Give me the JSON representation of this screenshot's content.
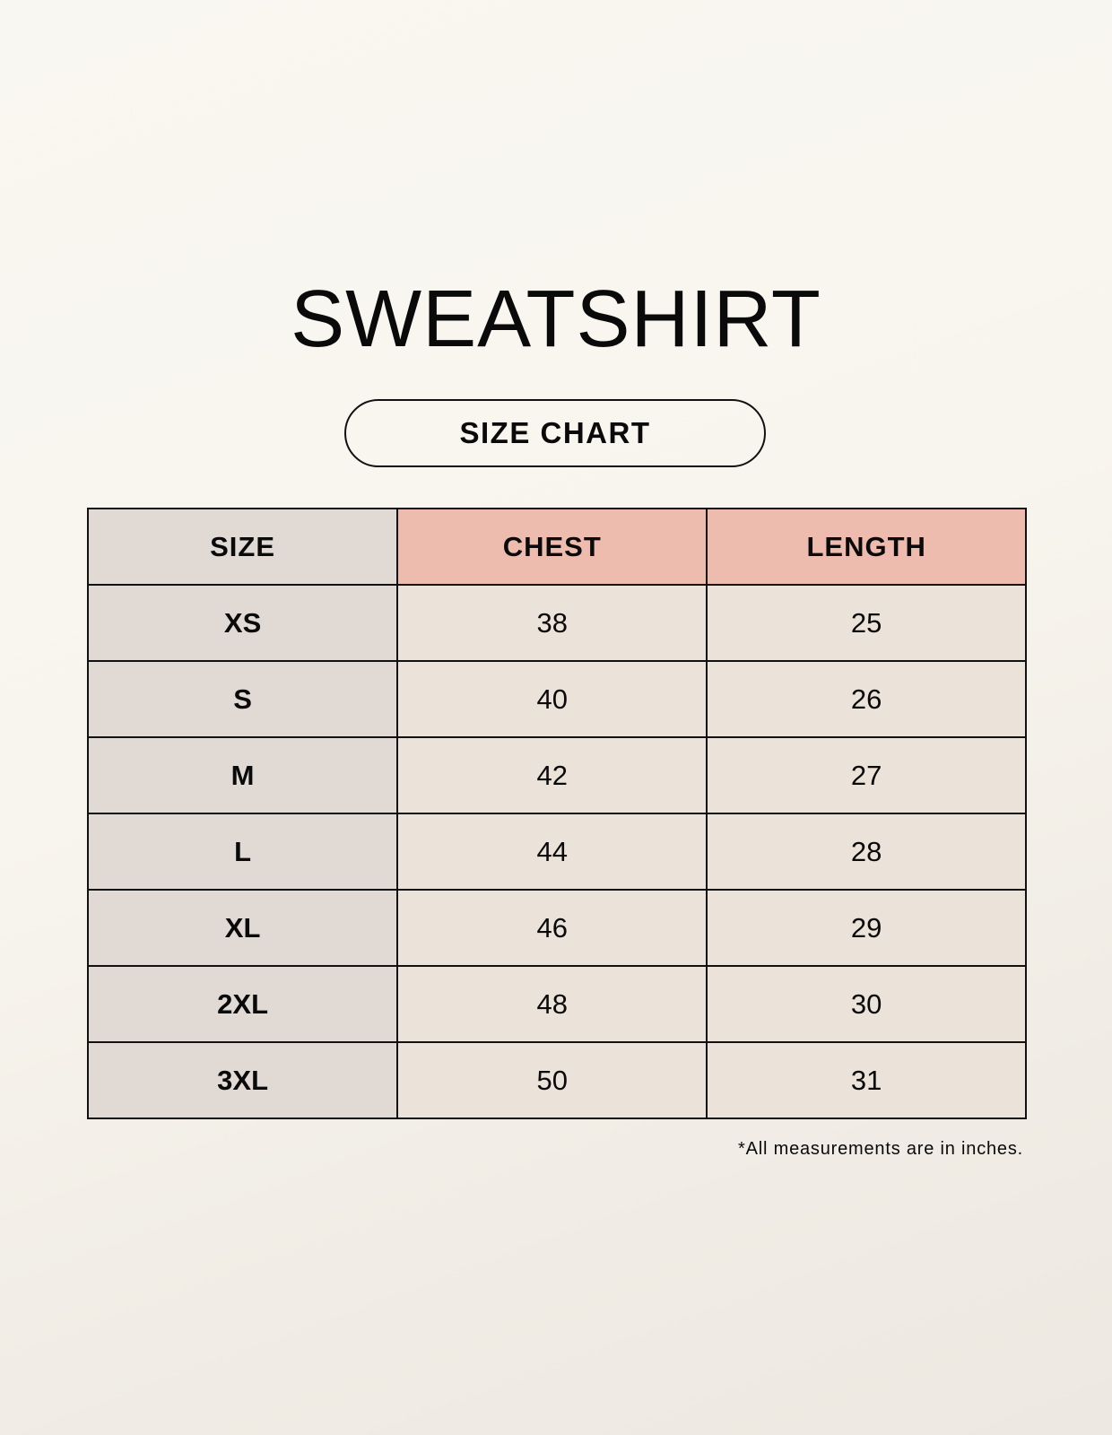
{
  "title": "SWEATSHIRT",
  "subtitle": "SIZE CHART",
  "table": {
    "headers": [
      "SIZE",
      "CHEST",
      "LENGTH"
    ],
    "rows": [
      [
        "XS",
        "38",
        "25"
      ],
      [
        "S",
        "40",
        "26"
      ],
      [
        "M",
        "42",
        "27"
      ],
      [
        "L",
        "44",
        "28"
      ],
      [
        "XL",
        "46",
        "29"
      ],
      [
        "2XL",
        "48",
        "30"
      ],
      [
        "3XL",
        "50",
        "31"
      ]
    ]
  },
  "footnote": "*All measurements are in inches.",
  "colors": {
    "size_column": "#e1d9d4",
    "header_accent": "#eebcaf",
    "value_cells": "#ebe3d9"
  }
}
